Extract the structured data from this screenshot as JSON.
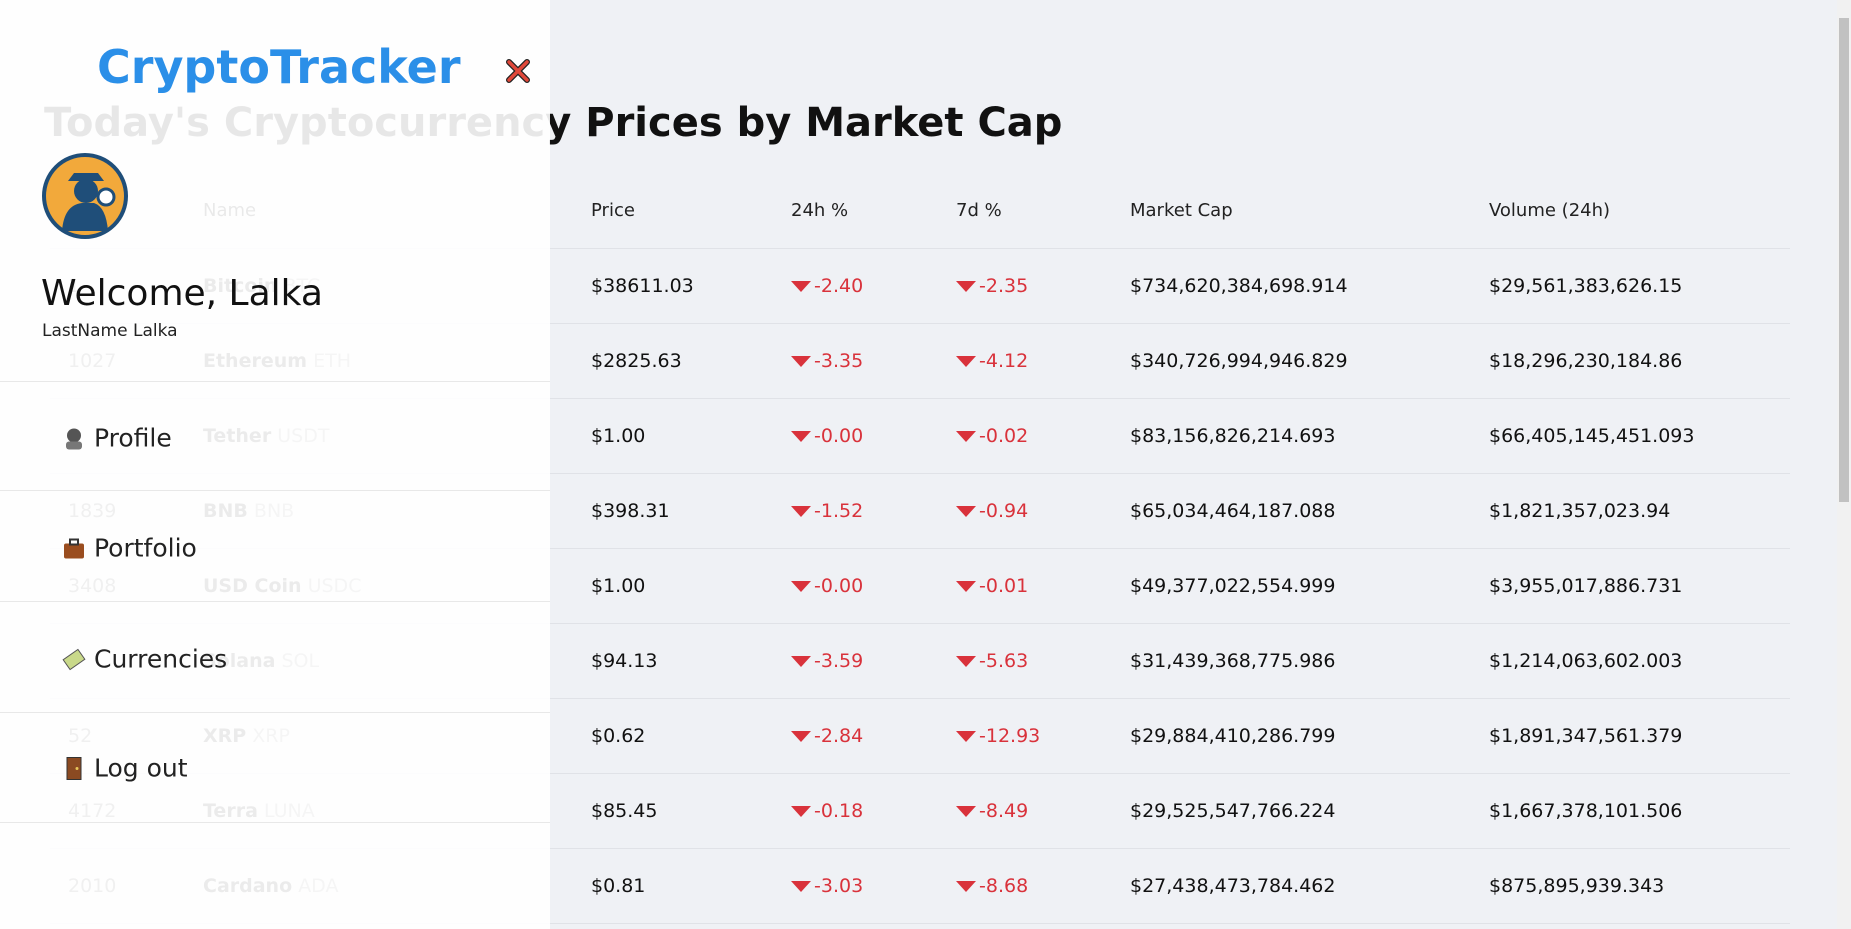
{
  "sidebar": {
    "logo": "CryptoTracker",
    "welcome": "Welcome, Lalka",
    "subtitle": "LastName Lalka",
    "menu": [
      "Profile",
      "Portfolio",
      "Currencies",
      "Log out"
    ]
  },
  "page": {
    "title": "Today's Cryptocurrency Prices by Market Cap"
  },
  "table": {
    "columns": [
      "Name",
      "Price",
      "24h %",
      "7d %",
      "Market Cap",
      "Volume (24h)"
    ],
    "rows": [
      {
        "rank": "1",
        "name": "Bitcoin",
        "symbol": "BTC",
        "price": "$38611.03",
        "change_24h": "-2.40",
        "change_7d": "-2.35",
        "market_cap": "$734,620,384,698.914",
        "volume": "$29,561,383,626.15"
      },
      {
        "rank": "1027",
        "name": "Ethereum",
        "symbol": "ETH",
        "price": "$2825.63",
        "change_24h": "-3.35",
        "change_7d": "-4.12",
        "market_cap": "$340,726,994,946.829",
        "volume": "$18,296,230,184.86"
      },
      {
        "rank": null,
        "name": "Tether",
        "symbol": "USDT",
        "price": "$1.00",
        "change_24h": "-0.00",
        "change_7d": "-0.02",
        "market_cap": "$83,156,826,214.693",
        "volume": "$66,405,145,451.093"
      },
      {
        "rank": "1839",
        "name": "BNB",
        "symbol": "BNB",
        "price": "$398.31",
        "change_24h": "-1.52",
        "change_7d": "-0.94",
        "market_cap": "$65,034,464,187.088",
        "volume": "$1,821,357,023.94"
      },
      {
        "rank": "3408",
        "name": "USD Coin",
        "symbol": "USDC",
        "price": "$1.00",
        "change_24h": "-0.00",
        "change_7d": "-0.01",
        "market_cap": "$49,377,022,554.999",
        "volume": "$3,955,017,886.731"
      },
      {
        "rank": null,
        "name": "Solana",
        "symbol": "SOL",
        "price": "$94.13",
        "change_24h": "-3.59",
        "change_7d": "-5.63",
        "market_cap": "$31,439,368,775.986",
        "volume": "$1,214,063,602.003"
      },
      {
        "rank": "52",
        "name": "XRP",
        "symbol": "XRP",
        "price": "$0.62",
        "change_24h": "-2.84",
        "change_7d": "-12.93",
        "market_cap": "$29,884,410,286.799",
        "volume": "$1,891,347,561.379"
      },
      {
        "rank": "4172",
        "name": "Terra",
        "symbol": "LUNA",
        "price": "$85.45",
        "change_24h": "-0.18",
        "change_7d": "-8.49",
        "market_cap": "$29,525,547,766.224",
        "volume": "$1,667,378,101.506"
      },
      {
        "rank": "2010",
        "name": "Cardano",
        "symbol": "ADA",
        "price": "$0.81",
        "change_24h": "-3.03",
        "change_7d": "-8.68",
        "market_cap": "$27,438,473,784.462",
        "volume": "$875,895,939.343"
      }
    ]
  }
}
